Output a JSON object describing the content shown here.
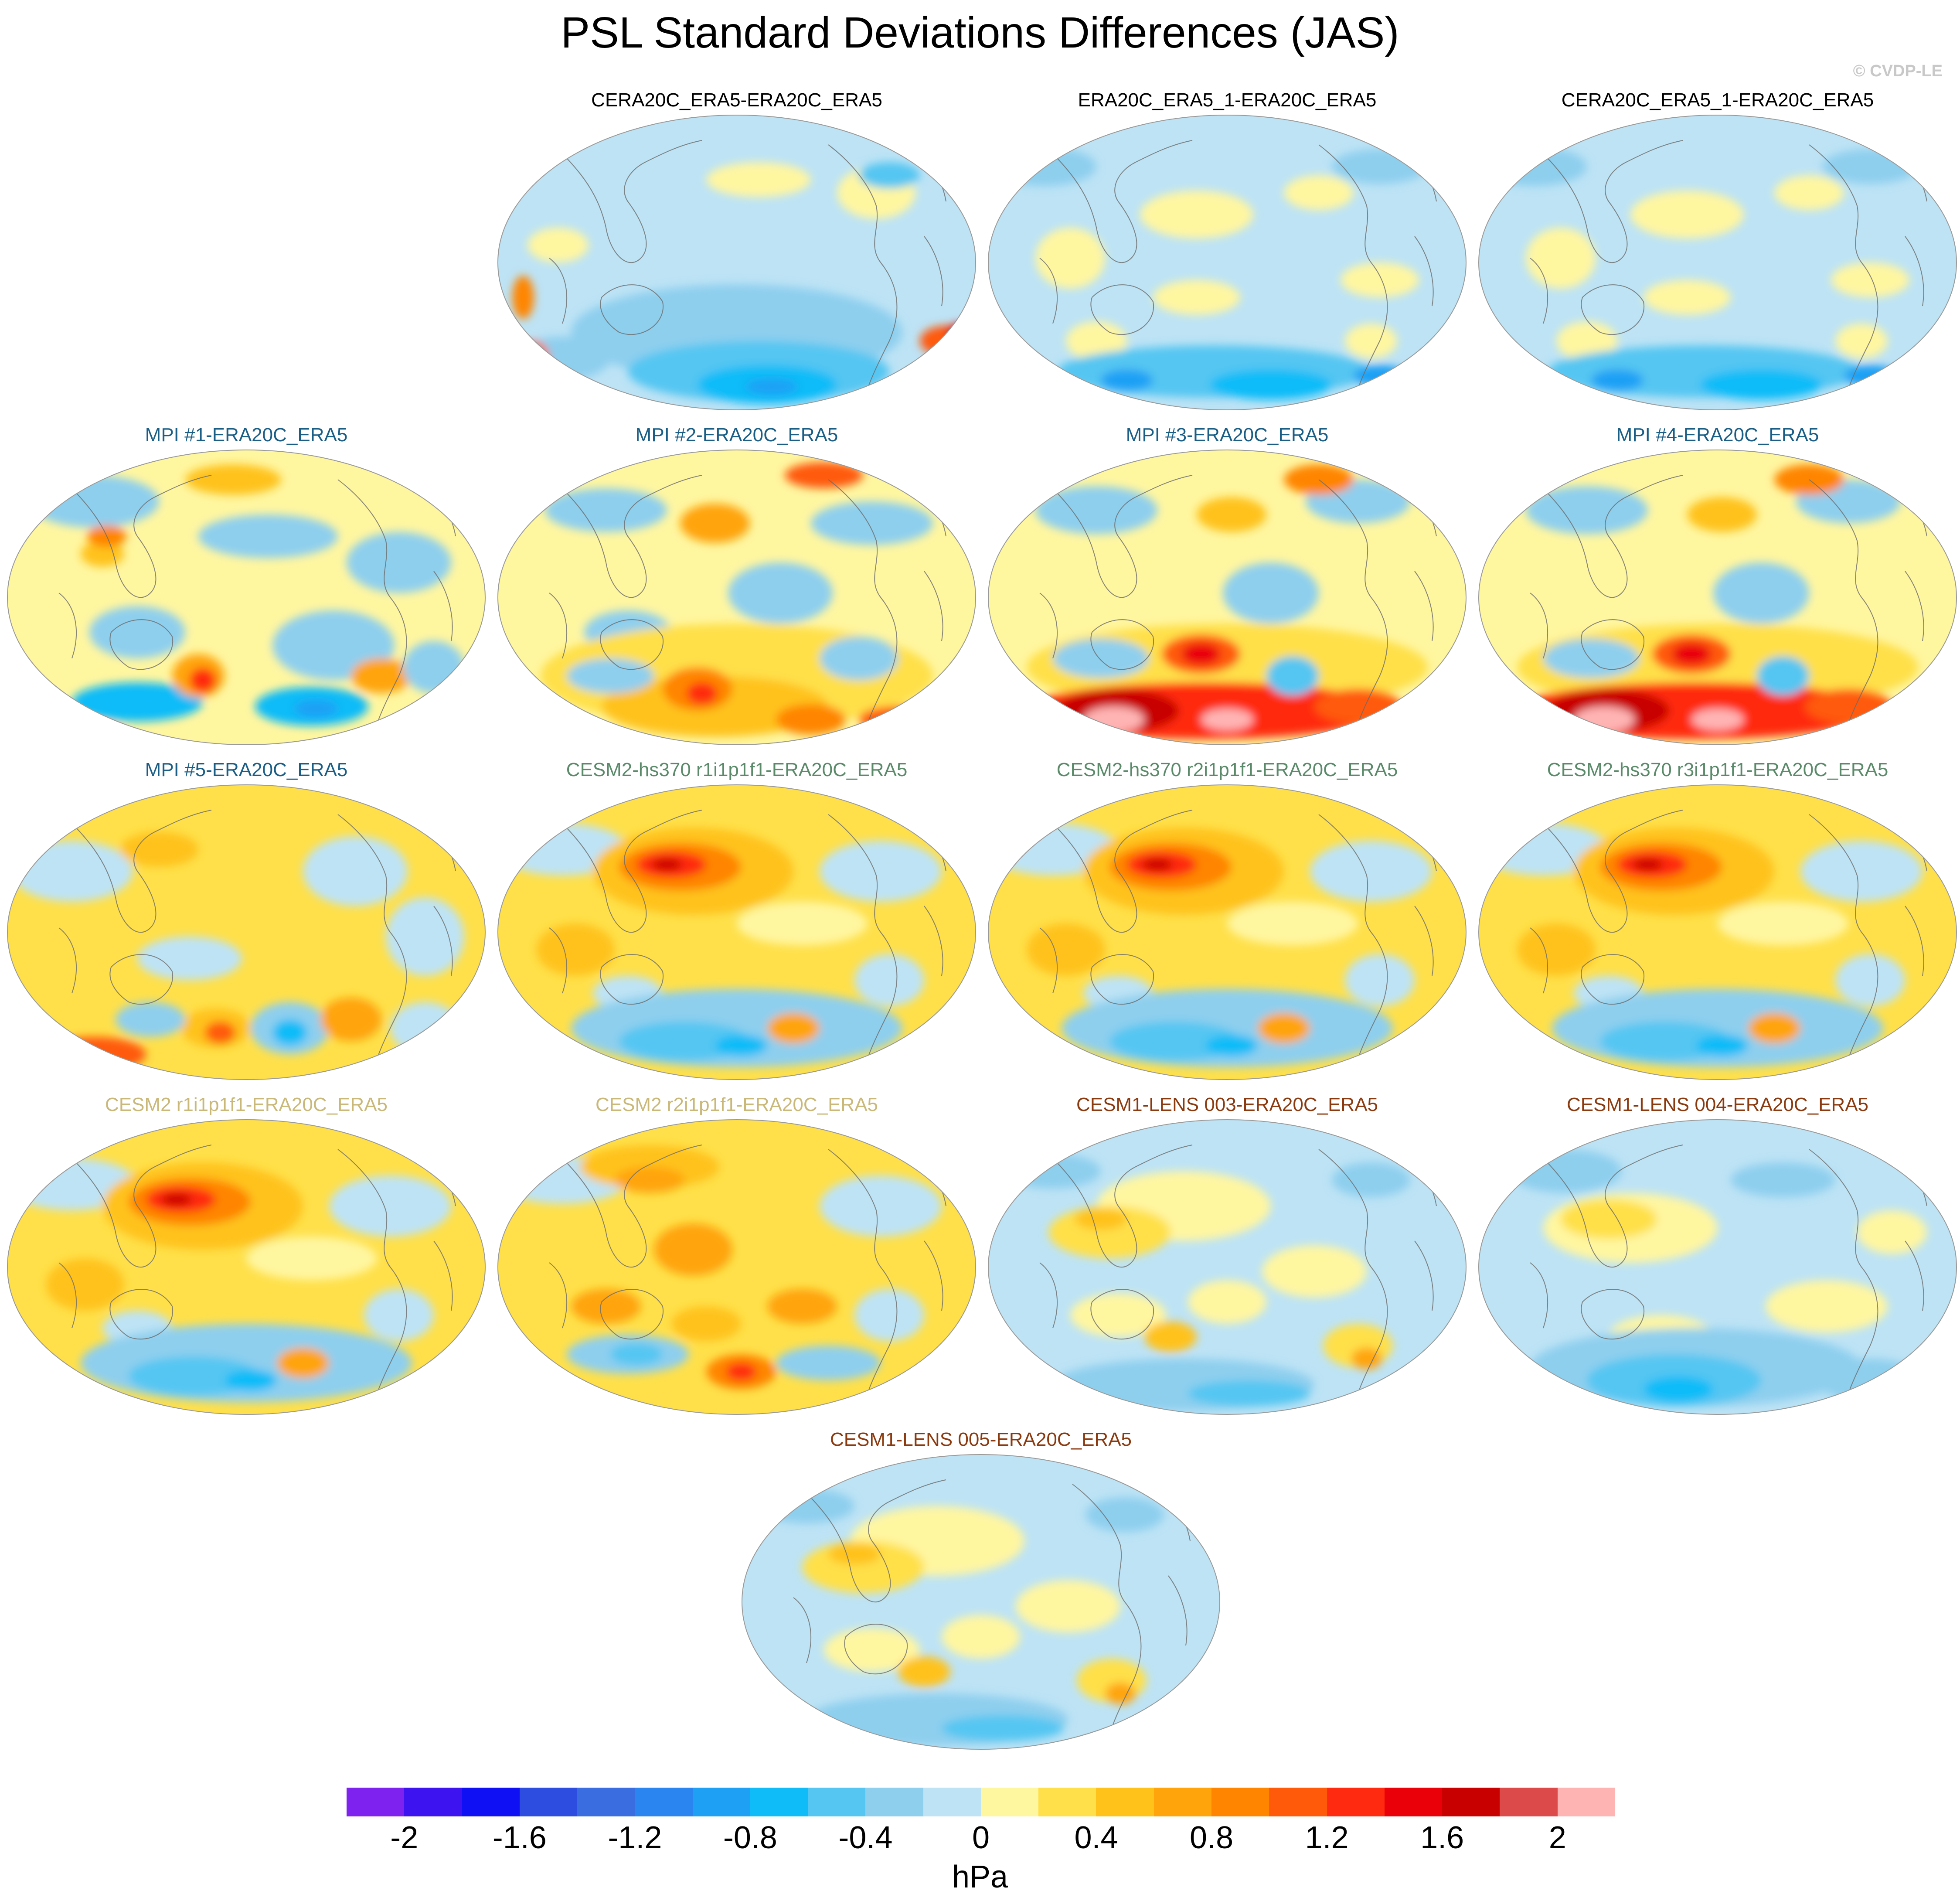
{
  "title": "PSL Standard Deviations Differences (JAS)",
  "credit": "© CVDP-LE",
  "colorbar": {
    "units": "hPa",
    "colors": [
      "#7e22f0",
      "#3d14f0",
      "#1010f5",
      "#2c4de0",
      "#3a6ee0",
      "#2b85f0",
      "#1ea0f5",
      "#10bcf8",
      "#55c6f2",
      "#8ecfee",
      "#bde3f5",
      "#fff6a0",
      "#ffe04a",
      "#ffc21a",
      "#ffa40a",
      "#ff8500",
      "#ff5a0a",
      "#ff2a10",
      "#ea0008",
      "#c80000",
      "#dc4a4a",
      "#ffb4b4"
    ],
    "tick_labels": [
      "-2",
      "-1.6",
      "-1.2",
      "-0.8",
      "-0.4",
      "0",
      "0.4",
      "0.8",
      "1.2",
      "1.6",
      "2"
    ]
  },
  "panels": [
    {
      "title": "CERA20C_ERA5-ERA20C_ERA5",
      "title_color": "#000000",
      "pattern": "mild_south_blue"
    },
    {
      "title": "ERA20C_ERA5_1-ERA20C_ERA5",
      "title_color": "#000000",
      "pattern": "mild_mixed"
    },
    {
      "title": "CERA20C_ERA5_1-ERA20C_ERA5",
      "title_color": "#000000",
      "pattern": "mild_mixed"
    },
    {
      "title": "MPI #1-ERA20C_ERA5",
      "title_color": "#1a5e86",
      "pattern": "mpi_mixed"
    },
    {
      "title": "MPI #2-ERA20C_ERA5",
      "title_color": "#1a5e86",
      "pattern": "mpi_warm_south"
    },
    {
      "title": "MPI #3-ERA20C_ERA5",
      "title_color": "#1a5e86",
      "pattern": "mpi_hot_south"
    },
    {
      "title": "MPI #4-ERA20C_ERA5",
      "title_color": "#1a5e86",
      "pattern": "mpi_hot_south"
    },
    {
      "title": "MPI #5-ERA20C_ERA5",
      "title_color": "#1a5e86",
      "pattern": "mpi_mixed_warm"
    },
    {
      "title": "CESM2-hs370 r1i1p1f1-ERA20C_ERA5",
      "title_color": "#5a8a6a",
      "pattern": "cesm_pacific_red"
    },
    {
      "title": "CESM2-hs370 r2i1p1f1-ERA20C_ERA5",
      "title_color": "#5a8a6a",
      "pattern": "cesm_pacific_red"
    },
    {
      "title": "CESM2-hs370 r3i1p1f1-ERA20C_ERA5",
      "title_color": "#5a8a6a",
      "pattern": "cesm_pacific_red"
    },
    {
      "title": "CESM2 r1i1p1f1-ERA20C_ERA5",
      "title_color": "#c9b878",
      "pattern": "cesm_pacific_red"
    },
    {
      "title": "CESM2 r2i1p1f1-ERA20C_ERA5",
      "title_color": "#c9b878",
      "pattern": "cesm_warm"
    },
    {
      "title": "CESM1-LENS 003-ERA20C_ERA5",
      "title_color": "#8b3a0f",
      "pattern": "lens_mild"
    },
    {
      "title": "CESM1-LENS 004-ERA20C_ERA5",
      "title_color": "#8b3a0f",
      "pattern": "lens_blue"
    },
    {
      "title": "CESM1-LENS 005-ERA20C_ERA5",
      "title_color": "#8b3a0f",
      "pattern": "lens_mild"
    }
  ]
}
